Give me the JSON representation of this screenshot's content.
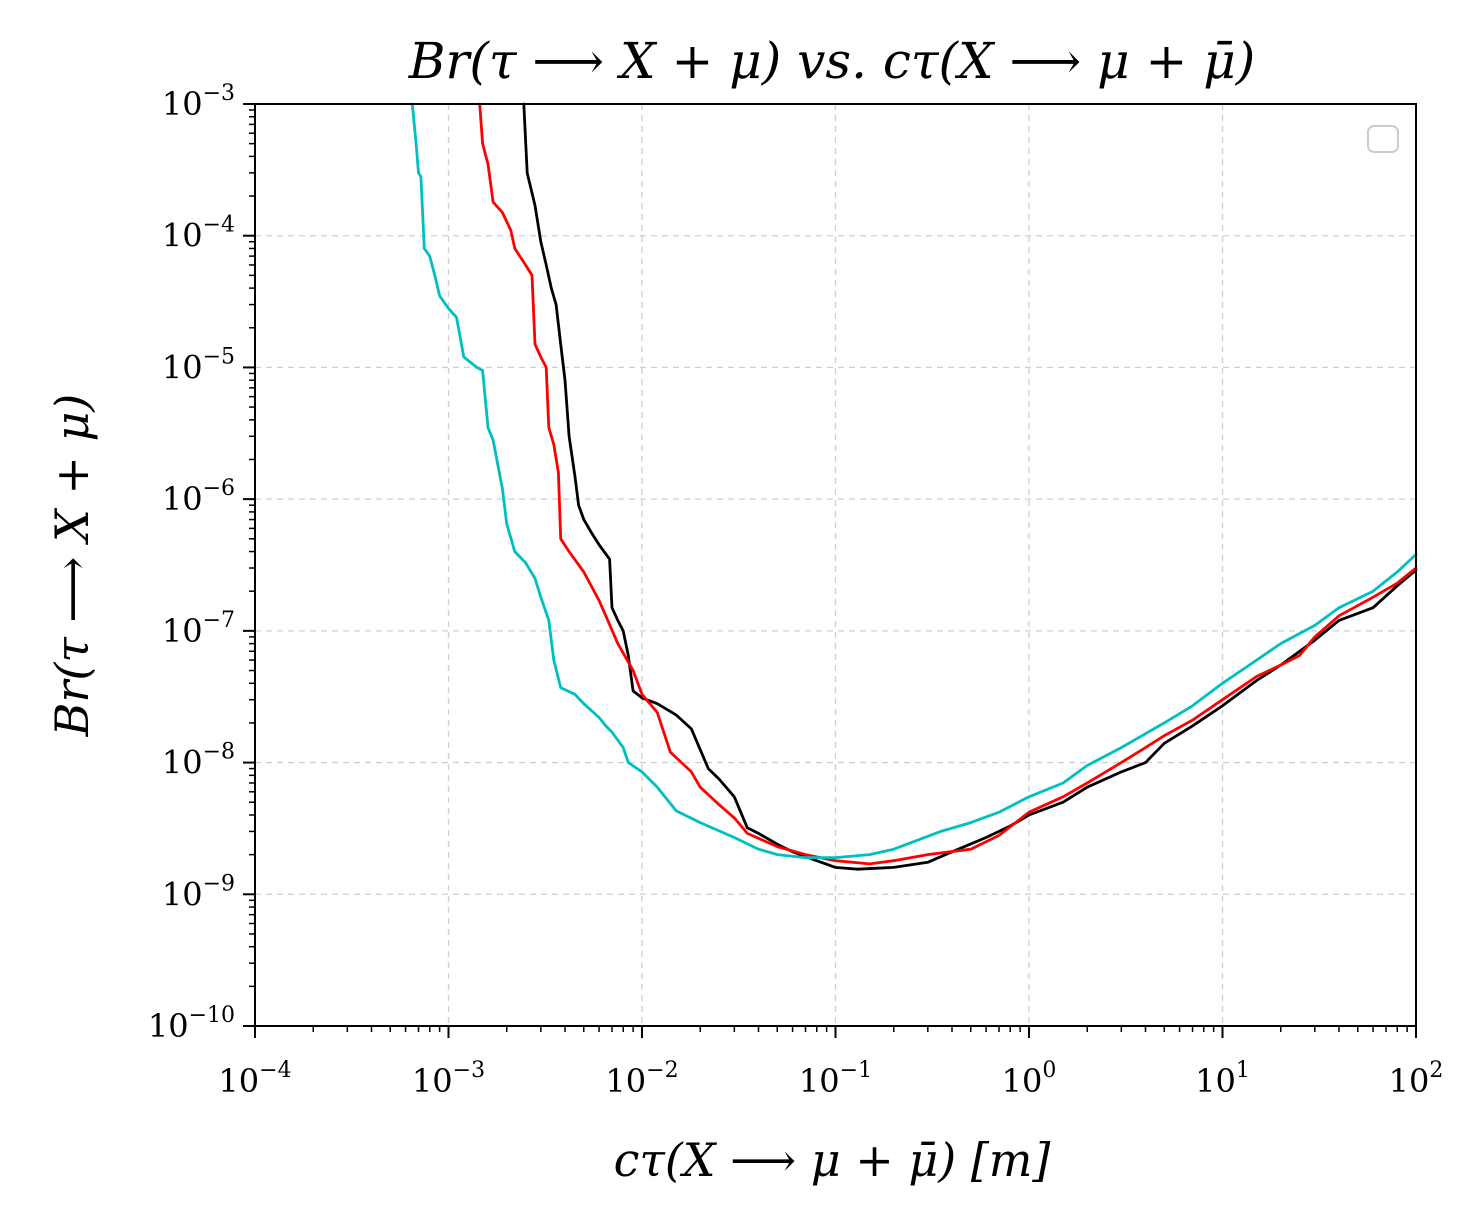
{
  "chart_data": {
    "type": "line",
    "title": "Br(τ ⟶ X + μ) vs. cτ(X ⟶ μ + μ̄)",
    "xlabel": "cτ(X ⟶ μ + μ̄) [m]",
    "ylabel": "Br(τ ⟶ X + μ)",
    "xscale": "log",
    "yscale": "log",
    "xlim": [
      0.0001,
      100
    ],
    "ylim": [
      1e-10,
      0.001
    ],
    "grid": true,
    "legend": "top-right",
    "x_ticks": [
      {
        "base": "10",
        "exp": "−4"
      },
      {
        "base": "10",
        "exp": "−3"
      },
      {
        "base": "10",
        "exp": "−2"
      },
      {
        "base": "10",
        "exp": "−1"
      },
      {
        "base": "10",
        "exp": "0"
      },
      {
        "base": "10",
        "exp": "1"
      },
      {
        "base": "10",
        "exp": "2"
      }
    ],
    "y_ticks": [
      {
        "base": "10",
        "exp": "−10"
      },
      {
        "base": "10",
        "exp": "−9"
      },
      {
        "base": "10",
        "exp": "−8"
      },
      {
        "base": "10",
        "exp": "−7"
      },
      {
        "base": "10",
        "exp": "−6"
      },
      {
        "base": "10",
        "exp": "−5"
      },
      {
        "base": "10",
        "exp": "−4"
      },
      {
        "base": "10",
        "exp": "−3"
      }
    ],
    "series": [
      {
        "color": "#000000",
        "points": [
          [
            0.00245,
            0.001
          ],
          [
            0.00255,
            0.0003
          ],
          [
            0.0028,
            0.00017
          ],
          [
            0.003,
            9e-05
          ],
          [
            0.0032,
            6e-05
          ],
          [
            0.0034,
            4e-05
          ],
          [
            0.0036,
            3e-05
          ],
          [
            0.0038,
            1.5e-05
          ],
          [
            0.004,
            8e-06
          ],
          [
            0.0042,
            3e-06
          ],
          [
            0.0045,
            1.5e-06
          ],
          [
            0.0047,
            9e-07
          ],
          [
            0.005,
            7e-07
          ],
          [
            0.0055,
            5.5e-07
          ],
          [
            0.006,
            4.5e-07
          ],
          [
            0.0068,
            3.5e-07
          ],
          [
            0.007,
            1.5e-07
          ],
          [
            0.0075,
            1.2e-07
          ],
          [
            0.008,
            1e-07
          ],
          [
            0.0085,
            6.5e-08
          ],
          [
            0.009,
            3.5e-08
          ],
          [
            0.01,
            3.1e-08
          ],
          [
            0.012,
            2.8e-08
          ],
          [
            0.015,
            2.3e-08
          ],
          [
            0.018,
            1.8e-08
          ],
          [
            0.022,
            9e-09
          ],
          [
            0.025,
            7.5e-09
          ],
          [
            0.03,
            5.5e-09
          ],
          [
            0.035,
            3.2e-09
          ],
          [
            0.04,
            2.9e-09
          ],
          [
            0.05,
            2.4e-09
          ],
          [
            0.06,
            2.1e-09
          ],
          [
            0.08,
            1.8e-09
          ],
          [
            0.1,
            1.6e-09
          ],
          [
            0.13,
            1.55e-09
          ],
          [
            0.2,
            1.6e-09
          ],
          [
            0.3,
            1.75e-09
          ],
          [
            0.4,
            2.1e-09
          ],
          [
            0.6,
            2.7e-09
          ],
          [
            0.8,
            3.3e-09
          ],
          [
            1,
            4e-09
          ],
          [
            1.5,
            5e-09
          ],
          [
            2,
            6.5e-09
          ],
          [
            3,
            8.5e-09
          ],
          [
            4,
            1e-08
          ],
          [
            5,
            1.4e-08
          ],
          [
            7,
            1.9e-08
          ],
          [
            10,
            2.7e-08
          ],
          [
            15,
            4.2e-08
          ],
          [
            20,
            5.5e-08
          ],
          [
            30,
            8.5e-08
          ],
          [
            40,
            1.2e-07
          ],
          [
            60,
            1.5e-07
          ],
          [
            80,
            2.2e-07
          ],
          [
            100,
            2.9e-07
          ]
        ]
      },
      {
        "color": "#ff0000",
        "points": [
          [
            0.00145,
            0.001
          ],
          [
            0.0015,
            0.0005
          ],
          [
            0.0016,
            0.00035
          ],
          [
            0.0017,
            0.00018
          ],
          [
            0.0019,
            0.00015
          ],
          [
            0.0021,
            0.00011
          ],
          [
            0.0022,
            8e-05
          ],
          [
            0.0025,
            6e-05
          ],
          [
            0.0027,
            5e-05
          ],
          [
            0.0028,
            1.5e-05
          ],
          [
            0.003,
            1.2e-05
          ],
          [
            0.0032,
            1e-05
          ],
          [
            0.0033,
            3.5e-06
          ],
          [
            0.0035,
            2.6e-06
          ],
          [
            0.0037,
            1.6e-06
          ],
          [
            0.0038,
            5e-07
          ],
          [
            0.0042,
            4e-07
          ],
          [
            0.005,
            2.8e-07
          ],
          [
            0.006,
            1.7e-07
          ],
          [
            0.0065,
            1.3e-07
          ],
          [
            0.0075,
            8e-08
          ],
          [
            0.009,
            5e-08
          ],
          [
            0.01,
            3.3e-08
          ],
          [
            0.012,
            2.4e-08
          ],
          [
            0.014,
            1.2e-08
          ],
          [
            0.018,
            8.5e-09
          ],
          [
            0.02,
            6.5e-09
          ],
          [
            0.025,
            4.8e-09
          ],
          [
            0.03,
            3.8e-09
          ],
          [
            0.035,
            2.9e-09
          ],
          [
            0.05,
            2.3e-09
          ],
          [
            0.07,
            2e-09
          ],
          [
            0.1,
            1.8e-09
          ],
          [
            0.15,
            1.7e-09
          ],
          [
            0.2,
            1.8e-09
          ],
          [
            0.3,
            2e-09
          ],
          [
            0.5,
            2.2e-09
          ],
          [
            0.7,
            2.8e-09
          ],
          [
            1,
            4.2e-09
          ],
          [
            1.5,
            5.5e-09
          ],
          [
            2,
            7e-09
          ],
          [
            3,
            1e-08
          ],
          [
            4,
            1.3e-08
          ],
          [
            5,
            1.6e-08
          ],
          [
            7,
            2.1e-08
          ],
          [
            10,
            3e-08
          ],
          [
            15,
            4.5e-08
          ],
          [
            20,
            5.5e-08
          ],
          [
            25,
            6.5e-08
          ],
          [
            30,
            9e-08
          ],
          [
            40,
            1.3e-07
          ],
          [
            60,
            1.8e-07
          ],
          [
            80,
            2.3e-07
          ],
          [
            100,
            3e-07
          ]
        ]
      },
      {
        "color": "#00bfbf",
        "points": [
          [
            0.00065,
            0.001
          ],
          [
            0.00068,
            0.0005
          ],
          [
            0.0007,
            0.0003
          ],
          [
            0.00072,
            0.00028
          ],
          [
            0.00075,
            8e-05
          ],
          [
            0.0008,
            7e-05
          ],
          [
            0.00085,
            5e-05
          ],
          [
            0.0009,
            3.5e-05
          ],
          [
            0.001,
            2.8e-05
          ],
          [
            0.0011,
            2.4e-05
          ],
          [
            0.0012,
            1.2e-05
          ],
          [
            0.0014,
            1e-05
          ],
          [
            0.0015,
            9.5e-06
          ],
          [
            0.0016,
            3.5e-06
          ],
          [
            0.0017,
            2.8e-06
          ],
          [
            0.0019,
            1.2e-06
          ],
          [
            0.002,
            6.5e-07
          ],
          [
            0.0022,
            4e-07
          ],
          [
            0.0025,
            3.3e-07
          ],
          [
            0.0028,
            2.5e-07
          ],
          [
            0.003,
            1.8e-07
          ],
          [
            0.0033,
            1.2e-07
          ],
          [
            0.0035,
            6e-08
          ],
          [
            0.0038,
            3.7e-08
          ],
          [
            0.0045,
            3.3e-08
          ],
          [
            0.005,
            2.8e-08
          ],
          [
            0.006,
            2.2e-08
          ],
          [
            0.0065,
            1.9e-08
          ],
          [
            0.007,
            1.7e-08
          ],
          [
            0.008,
            1.3e-08
          ],
          [
            0.0085,
            1e-08
          ],
          [
            0.01,
            8.5e-09
          ],
          [
            0.012,
            6.5e-09
          ],
          [
            0.015,
            4.3e-09
          ],
          [
            0.02,
            3.5e-09
          ],
          [
            0.03,
            2.7e-09
          ],
          [
            0.04,
            2.2e-09
          ],
          [
            0.05,
            2e-09
          ],
          [
            0.07,
            1.9e-09
          ],
          [
            0.1,
            1.9e-09
          ],
          [
            0.15,
            2e-09
          ],
          [
            0.2,
            2.2e-09
          ],
          [
            0.35,
            3e-09
          ],
          [
            0.5,
            3.5e-09
          ],
          [
            0.7,
            4.2e-09
          ],
          [
            1,
            5.5e-09
          ],
          [
            1.5,
            7e-09
          ],
          [
            2,
            9.5e-09
          ],
          [
            3,
            1.3e-08
          ],
          [
            5,
            2e-08
          ],
          [
            7,
            2.7e-08
          ],
          [
            10,
            4e-08
          ],
          [
            15,
            6e-08
          ],
          [
            20,
            8e-08
          ],
          [
            30,
            1.1e-07
          ],
          [
            40,
            1.5e-07
          ],
          [
            60,
            2e-07
          ],
          [
            80,
            2.8e-07
          ],
          [
            100,
            3.8e-07
          ]
        ]
      }
    ]
  }
}
